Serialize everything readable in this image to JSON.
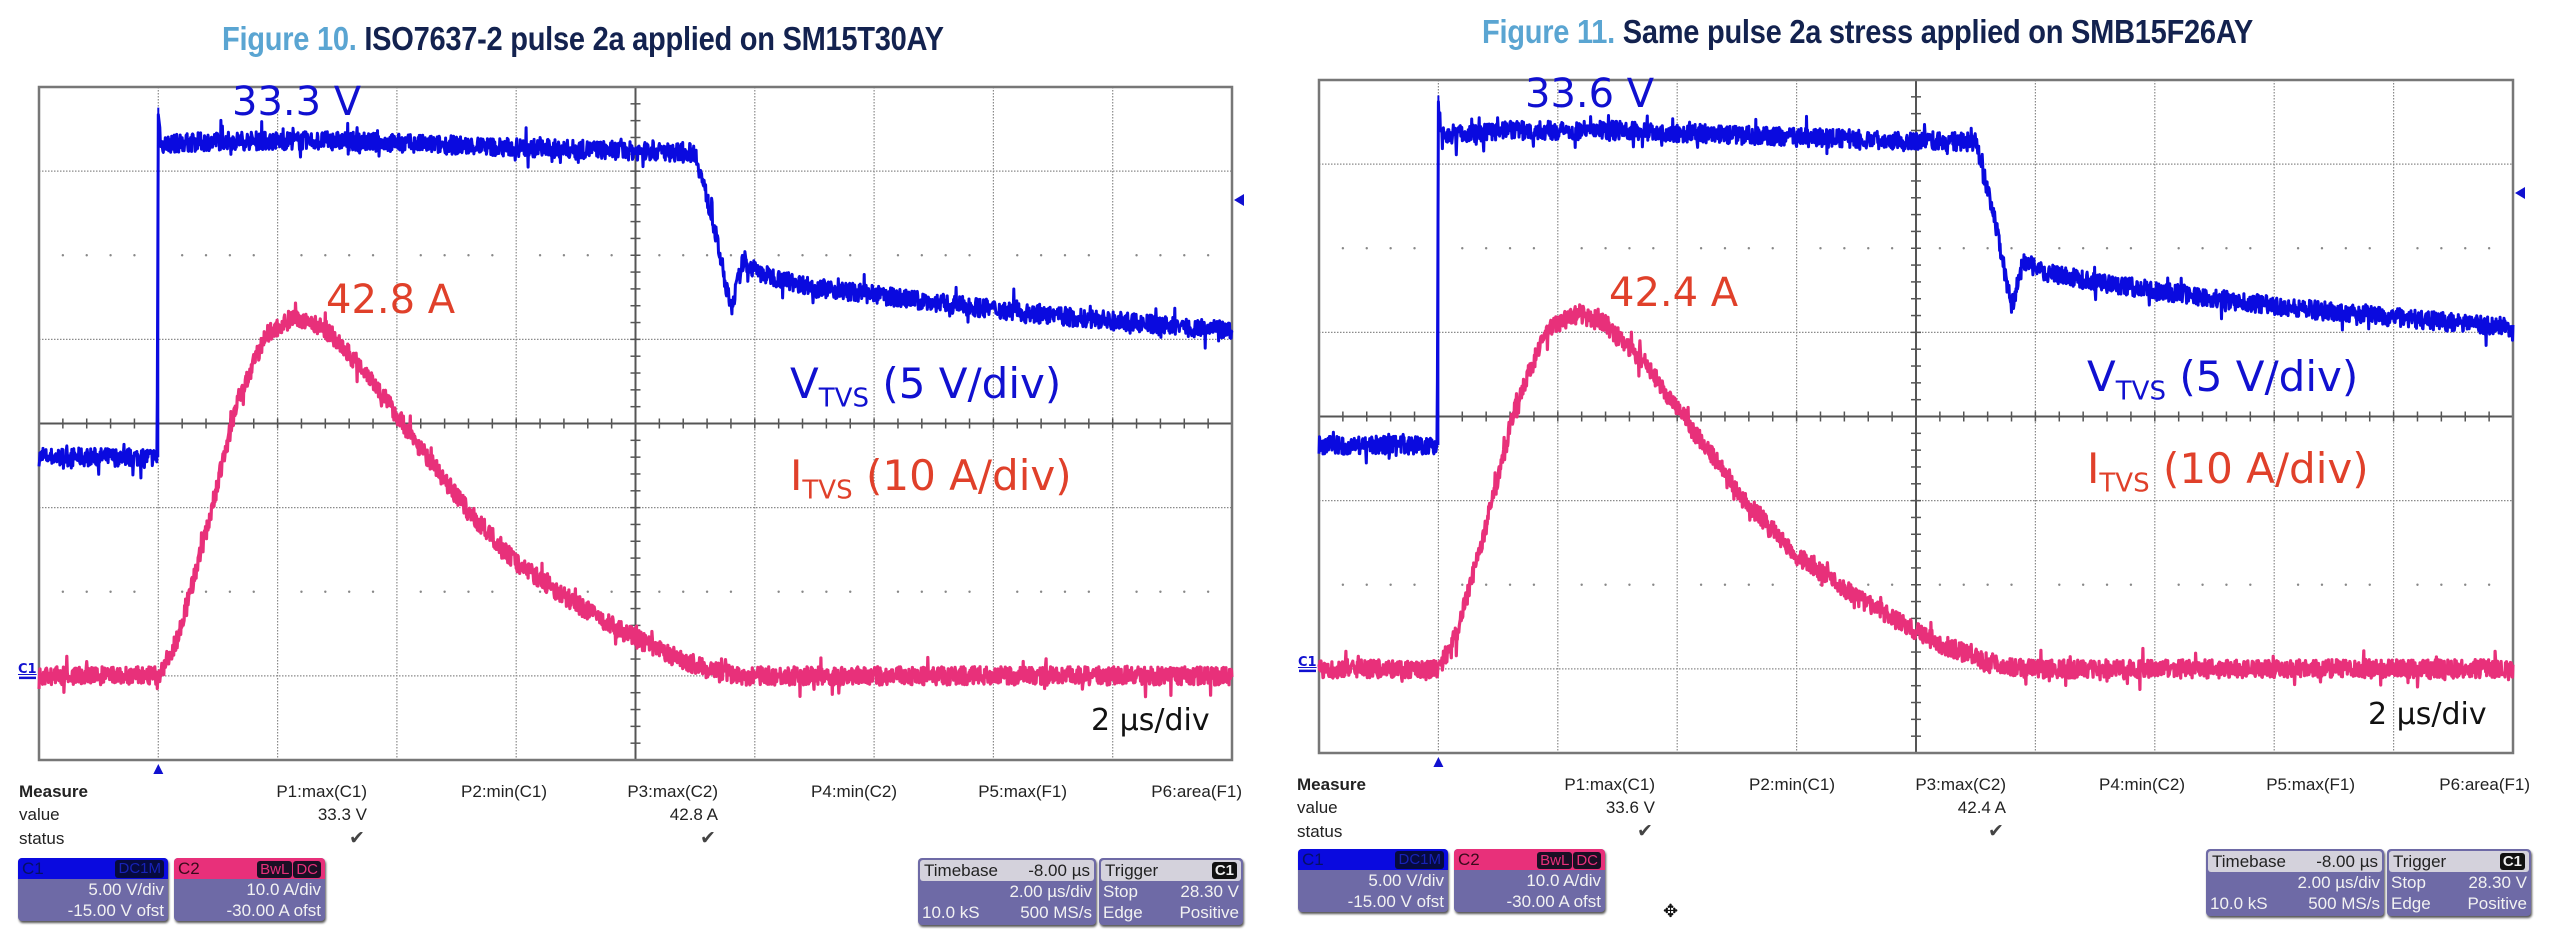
{
  "figures": [
    {
      "number": "Figure 10.",
      "title": "ISO7637-2 pulse 2a applied on SM15T30AY",
      "annotations": {
        "v_peak": "33.3 V",
        "i_peak": "42.8 A",
        "v_label_main": "V",
        "v_label_sub": "TVS",
        "v_label_scale": " (5 V/div)",
        "i_label_main": "I",
        "i_label_sub": "TVS",
        "i_label_scale": " (10 A/div)",
        "timescale": "2 µs/div",
        "ch_marker": "C1"
      },
      "measure": {
        "heading": "Measure",
        "row_labels": [
          "value",
          "status"
        ],
        "params": [
          {
            "name": "P1:max(C1)",
            "value": "33.3 V",
            "status": "✔"
          },
          {
            "name": "P2:min(C1)",
            "value": "",
            "status": ""
          },
          {
            "name": "P3:max(C2)",
            "value": "42.8 A",
            "status": "✔"
          },
          {
            "name": "P4:min(C2)",
            "value": "",
            "status": ""
          },
          {
            "name": "P5:max(F1)",
            "value": "",
            "status": ""
          },
          {
            "name": "P6:area(F1)",
            "value": "",
            "status": ""
          }
        ]
      },
      "channels": [
        {
          "name": "C1",
          "tags": [
            "DC1M"
          ],
          "scale": "5.00 V/div",
          "offset": "-15.00 V ofst",
          "color": "#0a0adf"
        },
        {
          "name": "C2",
          "tags": [
            "BwL",
            "DC"
          ],
          "scale": "10.0 A/div",
          "offset": "-30.00 A ofst",
          "color": "#e8307a"
        }
      ],
      "timebase": {
        "label": "Timebase",
        "delay": "-8.00 µs",
        "per_div": "2.00 µs/div",
        "samples": "10.0 kS",
        "rate": "500 MS/s"
      },
      "trigger": {
        "label": "Trigger",
        "source": "C1",
        "mode": "Stop",
        "level": "28.30 V",
        "type": "Edge",
        "slope": "Positive"
      }
    },
    {
      "number": "Figure 11.",
      "title": "Same pulse 2a stress applied on SMB15F26AY",
      "annotations": {
        "v_peak": "33.6 V",
        "i_peak": "42.4 A",
        "v_label_main": "V",
        "v_label_sub": "TVS",
        "v_label_scale": " (5 V/div)",
        "i_label_main": "I",
        "i_label_sub": "TVS",
        "i_label_scale": " (10 A/div)",
        "timescale": "2 µs/div",
        "ch_marker": "C1"
      },
      "measure": {
        "heading": "Measure",
        "row_labels": [
          "value",
          "status"
        ],
        "params": [
          {
            "name": "P1:max(C1)",
            "value": "33.6 V",
            "status": "✔"
          },
          {
            "name": "P2:min(C1)",
            "value": "",
            "status": ""
          },
          {
            "name": "P3:max(C2)",
            "value": "42.4 A",
            "status": "✔"
          },
          {
            "name": "P4:min(C2)",
            "value": "",
            "status": ""
          },
          {
            "name": "P5:max(F1)",
            "value": "",
            "status": ""
          },
          {
            "name": "P6:area(F1)",
            "value": "",
            "status": ""
          }
        ]
      },
      "channels": [
        {
          "name": "C1",
          "tags": [
            "DC1M"
          ],
          "scale": "5.00 V/div",
          "offset": "-15.00 V ofst",
          "color": "#0a0adf"
        },
        {
          "name": "C2",
          "tags": [
            "BwL",
            "DC"
          ],
          "scale": "10.0 A/div",
          "offset": "-30.00 A ofst",
          "color": "#e8307a"
        }
      ],
      "timebase": {
        "label": "Timebase",
        "delay": "-8.00 µs",
        "per_div": "2.00 µs/div",
        "samples": "10.0 kS",
        "rate": "500 MS/s"
      },
      "trigger": {
        "label": "Trigger",
        "source": "C1",
        "mode": "Stop",
        "level": "28.30 V",
        "type": "Edge",
        "slope": "Positive"
      }
    }
  ],
  "chart_data": [
    {
      "type": "line",
      "title": "Figure 10. ISO7637-2 pulse 2a applied on SM15T30AY",
      "xlabel": "time (µs), 2 µs/div",
      "x_range": [
        -2,
        18
      ],
      "grid": true,
      "divisions": {
        "x": 10,
        "y": 8
      },
      "series": [
        {
          "name": "VTVS (5 V/div)",
          "unit": "V",
          "color": "#0a0adf",
          "y_range": [
            -5,
            35
          ],
          "t": [
            -2,
            -0.02,
            0,
            0.05,
            1,
            3,
            6,
            9.0,
            9.3,
            9.6,
            9.8,
            10.1,
            11,
            13,
            15,
            18
          ],
          "values": [
            13.0,
            13.0,
            33.3,
            31.6,
            31.8,
            31.8,
            31.4,
            31.1,
            27.0,
            21.8,
            24.6,
            23.9,
            23.1,
            22.2,
            21.4,
            20.5
          ]
        },
        {
          "name": "ITVS (10 A/div)",
          "unit": "A",
          "color": "#e8307a",
          "y_range": [
            -10,
            70
          ],
          "t": [
            -2,
            0,
            0.3,
            0.8,
            1.3,
            1.8,
            2.3,
            2.8,
            3.5,
            4.3,
            5.2,
            6.0,
            6.8,
            7.6,
            8.4,
            9.2,
            9.8,
            12,
            15,
            18
          ],
          "values": [
            0,
            0,
            4,
            17,
            32,
            40.5,
            42.8,
            41.2,
            36,
            28,
            19.5,
            13.5,
            9.5,
            6,
            3,
            0.8,
            0,
            0,
            0,
            0
          ]
        }
      ]
    },
    {
      "type": "line",
      "title": "Figure 11. Same pulse 2a stress applied on SMB15F26AY",
      "xlabel": "time (µs), 2 µs/div",
      "x_range": [
        -2,
        18
      ],
      "grid": true,
      "divisions": {
        "x": 10,
        "y": 8
      },
      "series": [
        {
          "name": "VTVS (5 V/div)",
          "unit": "V",
          "color": "#0a0adf",
          "y_range": [
            -5,
            35
          ],
          "t": [
            -2,
            -0.02,
            0,
            0.05,
            1,
            3,
            6,
            9.0,
            9.3,
            9.6,
            9.8,
            10.1,
            11,
            13,
            15,
            18
          ],
          "values": [
            13.3,
            13.3,
            33.6,
            31.7,
            32.0,
            32.0,
            31.6,
            31.3,
            27.0,
            21.5,
            24.3,
            23.6,
            23.0,
            22.0,
            21.2,
            20.3
          ]
        },
        {
          "name": "ITVS (10 A/div)",
          "unit": "A",
          "color": "#e8307a",
          "y_range": [
            -10,
            70
          ],
          "t": [
            -2,
            0,
            0.3,
            0.8,
            1.3,
            1.8,
            2.3,
            2.8,
            3.5,
            4.3,
            5.2,
            6.0,
            6.8,
            7.6,
            8.4,
            9.2,
            9.8,
            12,
            15,
            18
          ],
          "values": [
            0,
            0,
            4,
            17,
            31.5,
            40,
            42.4,
            41,
            36,
            28,
            19.5,
            13.5,
            9.5,
            6,
            3,
            0.8,
            0,
            0,
            0,
            0
          ]
        }
      ]
    }
  ]
}
